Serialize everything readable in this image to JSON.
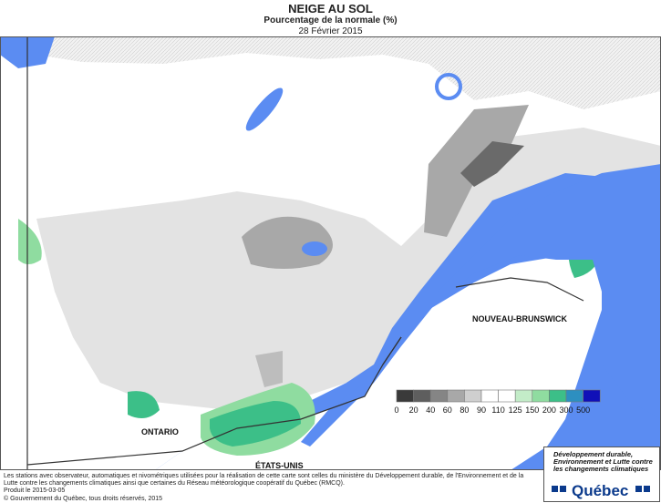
{
  "header": {
    "title": "NEIGE AU SOL",
    "subtitle": "Pourcentage de la normale (%)",
    "date": "28 Février 2015"
  },
  "map_labels": {
    "ontario": "ONTARIO",
    "etats_unis": "ÉTATS-UNIS",
    "nouveau_brunswick": "NOUVEAU-BRUNSWICK"
  },
  "legend": {
    "breaks": [
      0,
      20,
      40,
      60,
      80,
      90,
      110,
      125,
      150,
      200,
      300,
      500
    ],
    "colors": [
      "#3a3a3a",
      "#5e5e5e",
      "#858585",
      "#a8a8a8",
      "#cfcfcf",
      "#ffffff",
      "#ffffff",
      "#c3ecc8",
      "#8fdca0",
      "#3cbf88",
      "#2d8fc0",
      "#1010b8"
    ]
  },
  "footer": {
    "note": "Les stations avec observateur, automatiques et nivométriques utilisées pour la réalisation de cette carte sont celles du ministère du Développement durable, de l'Environnement et de la Lutte contre les changements climatiques ainsi que certaines du Réseau météorologique coopératif du Québec (RMCQ).",
    "produced": "Produit le 2015-03-05",
    "copyright": "© Gouvernement du Québec, tous droits réservés, 2015"
  },
  "logo": {
    "ministry": "Développement durable, Environnement et Lutte contre les changements climatiques",
    "name": "Québec"
  }
}
